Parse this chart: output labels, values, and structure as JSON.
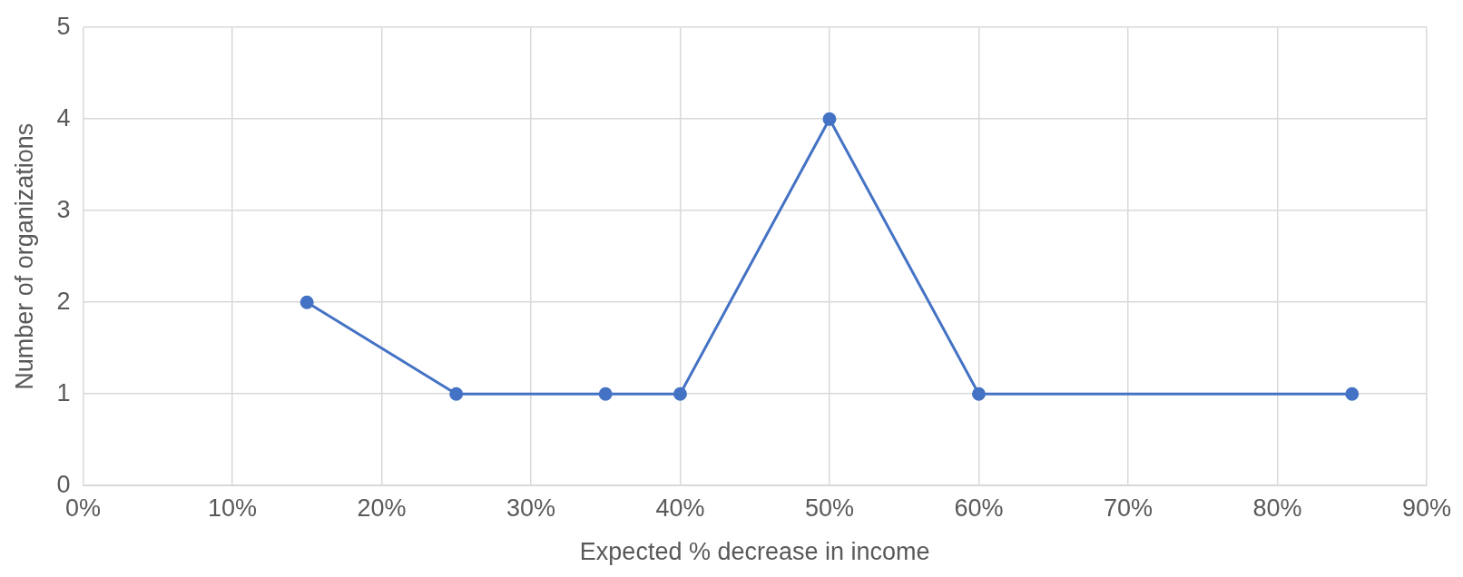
{
  "chart_data": {
    "type": "line",
    "xlabel": "Expected % decrease in income",
    "ylabel": "Number of organizations",
    "x": [
      15,
      25,
      35,
      40,
      50,
      60,
      85
    ],
    "series": [
      {
        "color": "#4472c4",
        "values": [
          2,
          1,
          1,
          1,
          4,
          1,
          1
        ]
      }
    ],
    "xlim": [
      0,
      90
    ],
    "xticks": [
      {
        "value": 0,
        "label": "0%"
      },
      {
        "value": 10,
        "label": "10%"
      },
      {
        "value": 20,
        "label": "20%"
      },
      {
        "value": 30,
        "label": "30%"
      },
      {
        "value": 40,
        "label": "40%"
      },
      {
        "value": 50,
        "label": "50%"
      },
      {
        "value": 60,
        "label": "60%"
      },
      {
        "value": 70,
        "label": "70%"
      },
      {
        "value": 80,
        "label": "80%"
      },
      {
        "value": 90,
        "label": "90%"
      }
    ],
    "ylim": [
      0,
      5
    ],
    "yticks": [
      0,
      1,
      2,
      3,
      4,
      5
    ],
    "grid": true,
    "marker": "circle",
    "line_style": "solid",
    "legend": false
  }
}
